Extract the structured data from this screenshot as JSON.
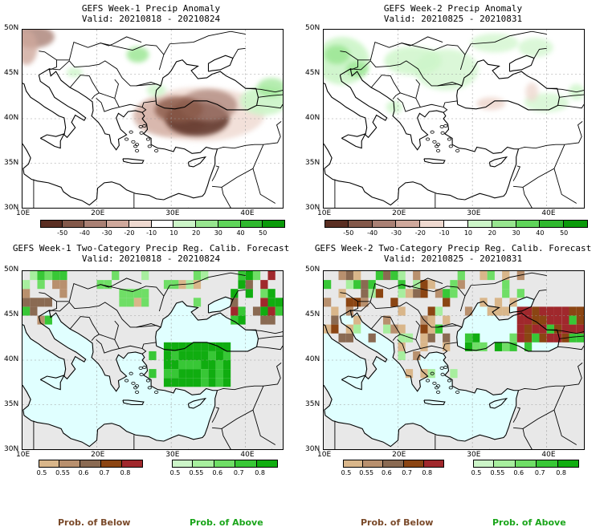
{
  "panels": [
    {
      "title_line1": "GEFS Week-1 Precip Anomaly",
      "title_line2": "Valid: 20210818 - 20210824",
      "lat_labels": [
        "50N",
        "45N",
        "40N",
        "35N",
        "30N"
      ],
      "lon_labels": [
        "10E",
        "20E",
        "30E",
        "40E"
      ]
    },
    {
      "title_line1": "GEFS Week-2 Precip Anomaly",
      "title_line2": "Valid: 20210825 - 20210831",
      "lat_labels": [
        "50N",
        "45N",
        "40N",
        "35N",
        "30N"
      ],
      "lon_labels": [
        "10E",
        "20E",
        "30E",
        "40E"
      ]
    },
    {
      "title_line1": "GEFS Week-1 Two-Category Precip Reg. Calib. Forecast",
      "title_line2": "Valid: 20210818 - 20210824",
      "lat_labels": [
        "50N",
        "45N",
        "40N",
        "35N",
        "30N"
      ],
      "lon_labels": [
        "10E",
        "20E",
        "30E",
        "40E"
      ]
    },
    {
      "title_line1": "GEFS Week-2 Two-Category Precip Reg. Calib. Forecast",
      "title_line2": "Valid: 20210825 - 20210831",
      "lat_labels": [
        "50N",
        "45N",
        "40N",
        "35N",
        "30N"
      ],
      "lon_labels": [
        "10E",
        "20E",
        "30E",
        "40E"
      ]
    }
  ],
  "anomaly_colorbar": {
    "labels": [
      "-50",
      "-40",
      "-30",
      "-20",
      "-10",
      "10",
      "20",
      "30",
      "40",
      "50"
    ],
    "colors": [
      "#5a2e22",
      "#83584a",
      "#a98074",
      "#cfa89c",
      "#efd9d0",
      "#ffffff",
      "#ccf5c8",
      "#97e58f",
      "#5fd45a",
      "#2fb82e",
      "#0a9a0a"
    ]
  },
  "prob_below_colorbar": {
    "labels": [
      "0.5",
      "0.55",
      "0.6",
      "0.7",
      "0.8"
    ],
    "colors": [
      "#d9b68a",
      "#b8906e",
      "#8a6a52",
      "#8b4513",
      "#a0282c"
    ]
  },
  "prob_above_colorbar": {
    "labels": [
      "0.5",
      "0.55",
      "0.6",
      "0.7",
      "0.8"
    ],
    "colors": [
      "#ccf5c8",
      "#a7ee9e",
      "#6fde66",
      "#38c736",
      "#10ad10"
    ]
  },
  "footer": {
    "prob_below": "Prob. of Below",
    "prob_above": "Prob. of Above"
  },
  "colors": {
    "sea_prob": "#e0ffff",
    "land_masked": "#e8e8e8",
    "below_text": "#7a4a2a",
    "above_text": "#1aa51a"
  }
}
